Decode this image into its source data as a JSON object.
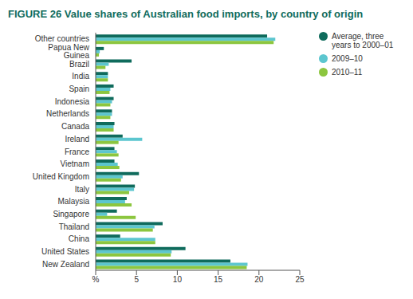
{
  "chart_data": {
    "type": "bar",
    "title": "FIGURE 26 Value shares of Australian food imports, by country of origin",
    "orientation": "horizontal",
    "grid": false,
    "legend": "right",
    "categories": [
      "Other countries",
      "Papua New Guinea",
      "Brazil",
      "India",
      "Spain",
      "Indonesia",
      "Netherlands",
      "Canada",
      "Ireland",
      "France",
      "Vietnam",
      "United Kingdom",
      "Italy",
      "Malaysia",
      "Singapore",
      "Thailand",
      "China",
      "United States",
      "New Zealand"
    ],
    "series": [
      {
        "name": "Average, three years to 2000–01",
        "color": "#0f6b5c",
        "values": [
          21.0,
          1.0,
          4.4,
          1.5,
          2.2,
          2.2,
          2.0,
          2.3,
          3.3,
          2.3,
          2.3,
          5.3,
          4.8,
          3.8,
          2.6,
          8.2,
          3.0,
          11.0,
          16.5
        ]
      },
      {
        "name": "2009–10",
        "color": "#5cc6cf",
        "values": [
          22.0,
          0.5,
          1.6,
          1.5,
          1.8,
          2.0,
          2.0,
          2.2,
          5.7,
          2.6,
          2.7,
          3.3,
          4.7,
          3.6,
          1.4,
          7.2,
          7.3,
          9.3,
          18.6
        ]
      },
      {
        "name": "2010–11",
        "color": "#8cc63f",
        "values": [
          21.8,
          0.4,
          1.2,
          1.5,
          1.7,
          1.8,
          1.8,
          2.2,
          2.8,
          2.8,
          2.9,
          3.1,
          4.1,
          4.4,
          4.9,
          7.0,
          7.3,
          9.2,
          18.5
        ]
      }
    ],
    "xlim": [
      0,
      25
    ],
    "xticks": [
      {
        "value": 0,
        "label": "%"
      },
      5,
      10,
      15,
      20,
      25
    ]
  }
}
